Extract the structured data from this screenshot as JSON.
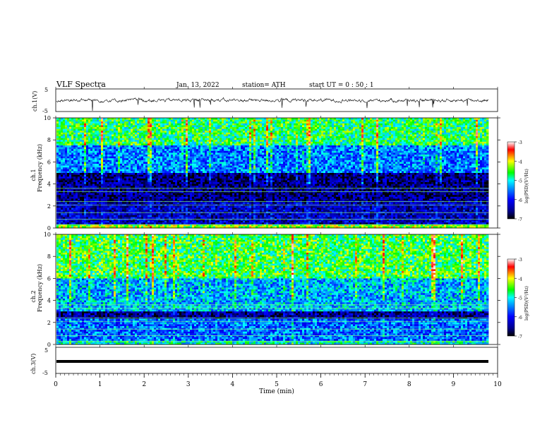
{
  "header": {
    "title": "VLF  Spectra",
    "date": "Jan.  13,  2022",
    "station": "station=  ATH",
    "start": "start  UT  =    0  :  50  :  1"
  },
  "colorbar": {
    "label": "log(PSD)(V²/Hz)",
    "ticks": [
      "-3",
      "-4",
      "-5",
      "-6",
      "-7"
    ],
    "scale_colors": [
      "#000000",
      "#00008b",
      "#0000ff",
      "#00aaff",
      "#00ffff",
      "#00ff00",
      "#ffff00",
      "#ff0000",
      "#ffffff"
    ]
  },
  "chart_data": [
    {
      "type": "line",
      "title": "",
      "ylabel": "ch.1(V)",
      "ylim": [
        -5,
        5
      ],
      "yticks": [
        "5",
        "-5"
      ],
      "xlim": [
        0,
        10
      ],
      "series": [
        {
          "values_description": "noisy trace around 0 V with downward spikes"
        }
      ]
    },
    {
      "type": "heatmap",
      "ylabel": "ch.1\nFrequency (kHz)",
      "ylabel_parts": [
        "ch.1",
        "Frequency (kHz)"
      ],
      "ylim": [
        0,
        10
      ],
      "yticks": [
        "0",
        "2",
        "4",
        "6",
        "8",
        "10"
      ],
      "xlim": [
        0,
        10
      ],
      "colorbar_range": [
        -7,
        -3
      ],
      "levels_by_band": [
        {
          "band_khz": [
            0,
            0.4
          ],
          "log_psd": -4.3
        },
        {
          "band_khz": [
            0.4,
            2.3
          ],
          "log_psd": -6.3
        },
        {
          "band_khz": [
            2.3,
            5.0
          ],
          "log_psd": -6.6
        },
        {
          "band_khz": [
            5.0,
            7.5
          ],
          "log_psd": -5.5
        },
        {
          "band_khz": [
            7.5,
            10
          ],
          "log_psd": -4.7
        }
      ]
    },
    {
      "type": "heatmap",
      "ylabel": "ch.2\nFrequency (kHz)",
      "ylabel_parts": [
        "ch.2",
        "Frequency (kHz)"
      ],
      "ylim": [
        0,
        10
      ],
      "yticks": [
        "0",
        "2",
        "4",
        "6",
        "8",
        "10"
      ],
      "xlim": [
        0,
        10
      ],
      "colorbar_range": [
        -7,
        -3
      ],
      "levels_by_band": [
        {
          "band_khz": [
            0,
            0.4
          ],
          "log_psd": -5.0
        },
        {
          "band_khz": [
            0.4,
            2.3
          ],
          "log_psd": -5.6
        },
        {
          "band_khz": [
            2.3,
            3.0
          ],
          "log_psd": -6.5
        },
        {
          "band_khz": [
            3.0,
            6.0
          ],
          "log_psd": -5.3
        },
        {
          "band_khz": [
            6.0,
            10
          ],
          "log_psd": -4.6
        }
      ]
    },
    {
      "type": "line",
      "ylabel": "ch.3(V)",
      "ylim": [
        -5,
        5
      ],
      "yticks": [
        "5",
        "-5"
      ],
      "xlim": [
        0,
        10
      ],
      "xticks": [
        "0",
        "1",
        "2",
        "3",
        "4",
        "5",
        "6",
        "7",
        "8",
        "9",
        "10"
      ],
      "xlabel": "Time  (min)",
      "series": [
        {
          "values_description": "flat thick trace near -1 V"
        }
      ]
    }
  ]
}
